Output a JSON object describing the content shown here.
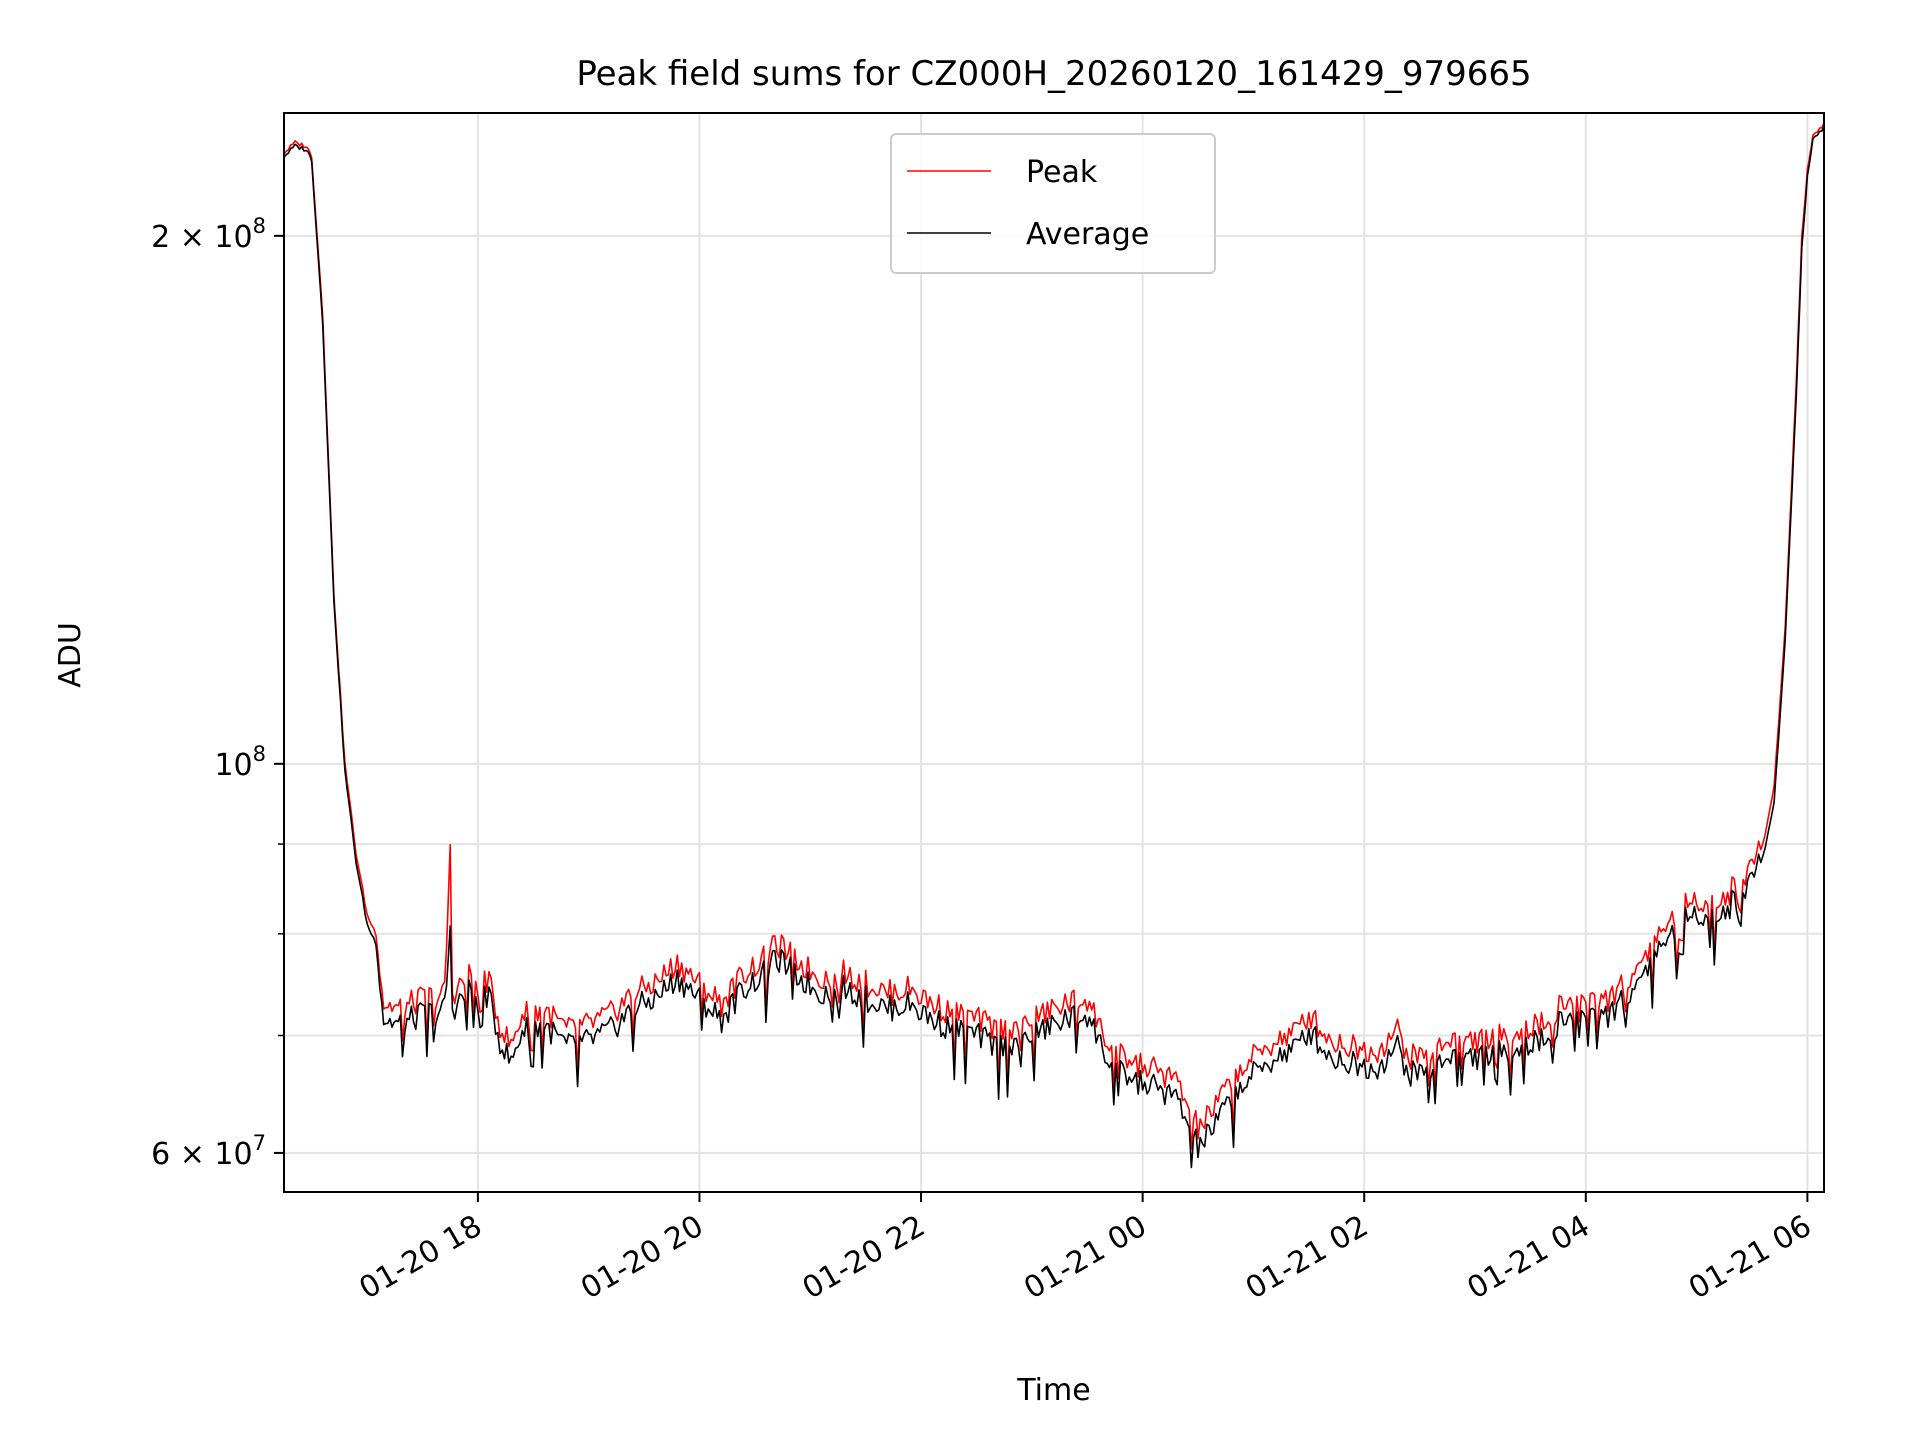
{
  "chart_data": {
    "type": "line",
    "title": "Peak field sums for CZ000H_20260120_161429_979665",
    "xlabel": "Time",
    "ylabel": "ADU",
    "y_scale": "log",
    "ylim": [
      57000000,
      235000000
    ],
    "xlim_hours": [
      16.25,
      30.15
    ],
    "x_unit": "hours since 2026-01-20 00:00",
    "grid": true,
    "legend_position": "top-center",
    "x_ticks": [
      {
        "hours": 18,
        "label": "01-20 18"
      },
      {
        "hours": 20,
        "label": "01-20 20"
      },
      {
        "hours": 22,
        "label": "01-20 22"
      },
      {
        "hours": 24,
        "label": "01-21 00"
      },
      {
        "hours": 26,
        "label": "01-21 02"
      },
      {
        "hours": 28,
        "label": "01-21 04"
      },
      {
        "hours": 30,
        "label": "01-21 06"
      }
    ],
    "y_major_ticks": [
      {
        "value": 60000000,
        "mant": "6",
        "times": " × ",
        "base": "10",
        "exp": "7"
      },
      {
        "value": 100000000,
        "mant": "",
        "times": "",
        "base": "10",
        "exp": "8"
      },
      {
        "value": 200000000,
        "mant": "2",
        "times": " × ",
        "base": "10",
        "exp": "8"
      }
    ],
    "y_minor_ticks": [
      70000000,
      80000000,
      90000000
    ],
    "series": [
      {
        "name": "Peak",
        "color": "#ff0000",
        "points": [
          [
            16.25,
            223000000
          ],
          [
            16.35,
            226000000
          ],
          [
            16.45,
            225000000
          ],
          [
            16.5,
            222000000
          ],
          [
            16.6,
            180000000
          ],
          [
            16.7,
            125000000
          ],
          [
            16.8,
            100000000
          ],
          [
            16.9,
            89000000
          ],
          [
            17.0,
            82000000
          ],
          [
            17.08,
            80000000
          ],
          [
            17.15,
            73000000
          ],
          [
            17.3,
            72500000
          ],
          [
            17.5,
            73500000
          ],
          [
            17.7,
            74000000
          ],
          [
            17.75,
            89000000
          ],
          [
            17.77,
            74000000
          ],
          [
            17.9,
            75500000
          ],
          [
            18.0,
            76500000
          ],
          [
            18.1,
            75000000
          ],
          [
            18.2,
            71000000
          ],
          [
            18.3,
            69000000
          ],
          [
            18.4,
            72000000
          ],
          [
            18.6,
            72500000
          ],
          [
            18.8,
            70500000
          ],
          [
            19.0,
            71000000
          ],
          [
            19.2,
            72000000
          ],
          [
            19.4,
            74000000
          ],
          [
            19.6,
            75000000
          ],
          [
            19.8,
            77000000
          ],
          [
            20.0,
            75000000
          ],
          [
            20.2,
            73000000
          ],
          [
            20.4,
            76000000
          ],
          [
            20.6,
            77500000
          ],
          [
            20.7,
            79000000
          ],
          [
            20.9,
            77000000
          ],
          [
            21.1,
            75500000
          ],
          [
            21.3,
            76000000
          ],
          [
            21.5,
            75000000
          ],
          [
            21.7,
            74000000
          ],
          [
            21.9,
            74500000
          ],
          [
            22.1,
            73000000
          ],
          [
            22.3,
            72000000
          ],
          [
            22.5,
            71500000
          ],
          [
            22.7,
            70500000
          ],
          [
            22.9,
            71000000
          ],
          [
            23.1,
            72000000
          ],
          [
            23.3,
            73000000
          ],
          [
            23.5,
            73500000
          ],
          [
            23.7,
            69000000
          ],
          [
            23.9,
            67500000
          ],
          [
            24.1,
            67000000
          ],
          [
            24.3,
            66000000
          ],
          [
            24.4,
            64000000
          ],
          [
            24.5,
            62000000
          ],
          [
            24.6,
            63000000
          ],
          [
            24.8,
            66000000
          ],
          [
            25.0,
            68000000
          ],
          [
            25.2,
            69500000
          ],
          [
            25.4,
            70500000
          ],
          [
            25.5,
            72000000
          ],
          [
            25.7,
            69500000
          ],
          [
            25.9,
            69000000
          ],
          [
            26.1,
            68500000
          ],
          [
            26.3,
            70500000
          ],
          [
            26.4,
            68000000
          ],
          [
            26.6,
            68500000
          ],
          [
            26.8,
            70000000
          ],
          [
            27.0,
            69500000
          ],
          [
            27.2,
            70000000
          ],
          [
            27.4,
            70500000
          ],
          [
            27.6,
            71000000
          ],
          [
            27.8,
            73000000
          ],
          [
            28.0,
            74000000
          ],
          [
            28.2,
            73500000
          ],
          [
            28.4,
            75500000
          ],
          [
            28.6,
            79000000
          ],
          [
            28.8,
            82000000
          ],
          [
            29.0,
            84000000
          ],
          [
            29.2,
            83000000
          ],
          [
            29.4,
            86000000
          ],
          [
            29.6,
            90000000
          ],
          [
            29.7,
            97000000
          ],
          [
            29.8,
            120000000
          ],
          [
            29.9,
            165000000
          ],
          [
            29.95,
            200000000
          ],
          [
            30.0,
            218000000
          ],
          [
            30.05,
            228000000
          ],
          [
            30.15,
            232000000
          ]
        ]
      },
      {
        "name": "Average",
        "color": "#000000",
        "points": [
          [
            16.25,
            222000000
          ],
          [
            16.35,
            225000000
          ],
          [
            16.45,
            224000000
          ],
          [
            16.5,
            221000000
          ],
          [
            16.6,
            178000000
          ],
          [
            16.7,
            124000000
          ],
          [
            16.8,
            99000000
          ],
          [
            16.9,
            88000000
          ],
          [
            17.0,
            81000000
          ],
          [
            17.08,
            79000000
          ],
          [
            17.15,
            71500000
          ],
          [
            17.3,
            71000000
          ],
          [
            17.5,
            72000000
          ],
          [
            17.7,
            72500000
          ],
          [
            17.75,
            80000000
          ],
          [
            17.77,
            72500000
          ],
          [
            17.9,
            74000000
          ],
          [
            18.0,
            75000000
          ],
          [
            18.1,
            73500000
          ],
          [
            18.2,
            69500000
          ],
          [
            18.3,
            67500000
          ],
          [
            18.4,
            70500000
          ],
          [
            18.6,
            71000000
          ],
          [
            18.8,
            69000000
          ],
          [
            19.0,
            69500000
          ],
          [
            19.2,
            70500000
          ],
          [
            19.4,
            72500000
          ],
          [
            19.6,
            73500000
          ],
          [
            19.8,
            75500000
          ],
          [
            20.0,
            73500000
          ],
          [
            20.2,
            71500000
          ],
          [
            20.4,
            74500000
          ],
          [
            20.6,
            76000000
          ],
          [
            20.7,
            77500000
          ],
          [
            20.9,
            75500000
          ],
          [
            21.1,
            74000000
          ],
          [
            21.3,
            74500000
          ],
          [
            21.5,
            73500000
          ],
          [
            21.7,
            72500000
          ],
          [
            21.9,
            73000000
          ],
          [
            22.1,
            71500000
          ],
          [
            22.3,
            70500000
          ],
          [
            22.5,
            70000000
          ],
          [
            22.7,
            69000000
          ],
          [
            22.9,
            69500000
          ],
          [
            23.1,
            70500000
          ],
          [
            23.3,
            71500000
          ],
          [
            23.5,
            72000000
          ],
          [
            23.7,
            67500000
          ],
          [
            23.9,
            66000000
          ],
          [
            24.1,
            65500000
          ],
          [
            24.3,
            64500000
          ],
          [
            24.4,
            62500000
          ],
          [
            24.5,
            60500000
          ],
          [
            24.6,
            61500000
          ],
          [
            24.8,
            64500000
          ],
          [
            25.0,
            66500000
          ],
          [
            25.2,
            68000000
          ],
          [
            25.4,
            69000000
          ],
          [
            25.5,
            70500000
          ],
          [
            25.7,
            68000000
          ],
          [
            25.9,
            67500000
          ],
          [
            26.1,
            67000000
          ],
          [
            26.3,
            69000000
          ],
          [
            26.4,
            66500000
          ],
          [
            26.6,
            67000000
          ],
          [
            26.8,
            68500000
          ],
          [
            27.0,
            68000000
          ],
          [
            27.2,
            68500000
          ],
          [
            27.4,
            69000000
          ],
          [
            27.6,
            69500000
          ],
          [
            27.8,
            71500000
          ],
          [
            28.0,
            72500000
          ],
          [
            28.2,
            72000000
          ],
          [
            28.4,
            74000000
          ],
          [
            28.6,
            77500000
          ],
          [
            28.8,
            80500000
          ],
          [
            29.0,
            82500000
          ],
          [
            29.2,
            81500000
          ],
          [
            29.4,
            84500000
          ],
          [
            29.6,
            88500000
          ],
          [
            29.7,
            95000000
          ],
          [
            29.8,
            118000000
          ],
          [
            29.9,
            162000000
          ],
          [
            29.95,
            197000000
          ],
          [
            30.0,
            216000000
          ],
          [
            30.05,
            227000000
          ],
          [
            30.15,
            231000000
          ]
        ]
      }
    ]
  }
}
